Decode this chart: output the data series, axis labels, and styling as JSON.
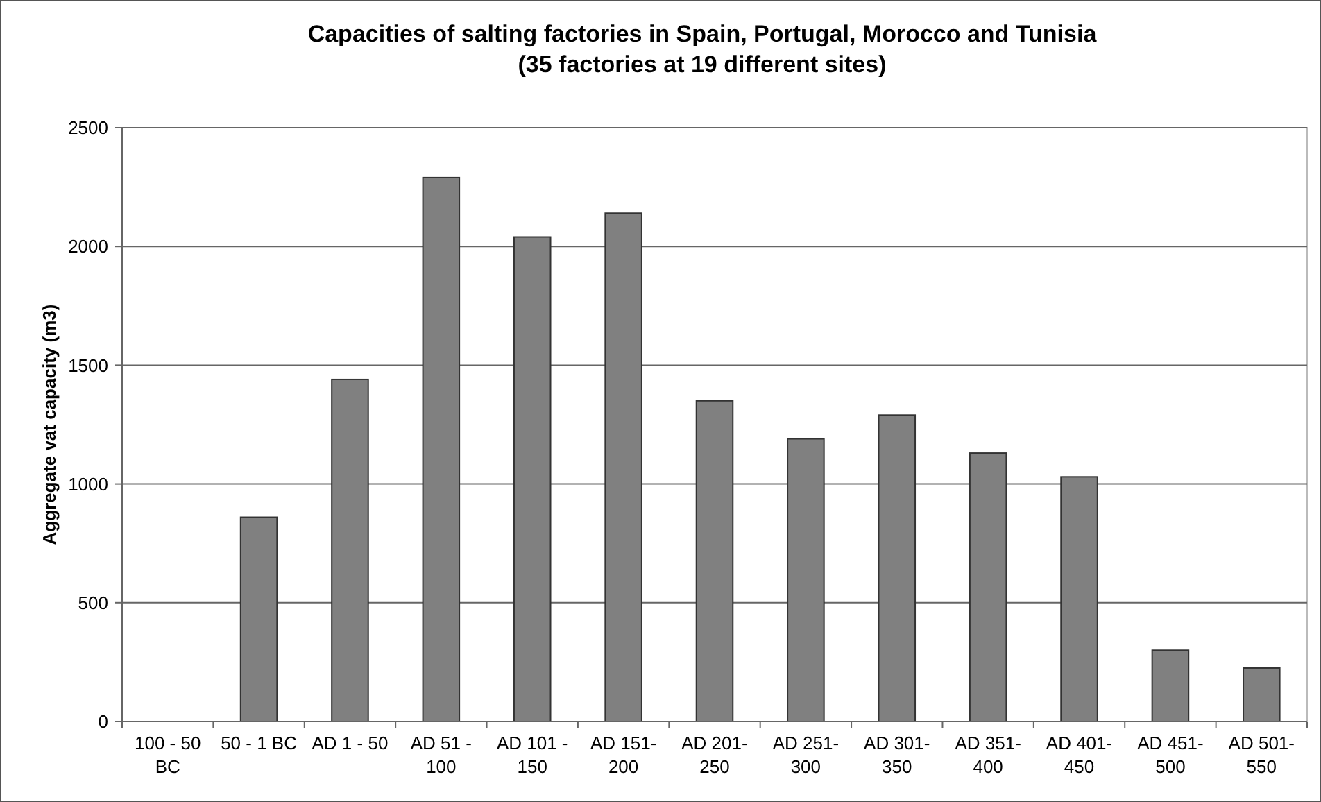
{
  "chart_data": {
    "type": "bar",
    "title": "Capacities of salting factories in Spain, Portugal, Morocco and Tunisia",
    "subtitle": "(35 factories at 19 different sites)",
    "ylabel": "Aggregate vat capacity (m3)",
    "categories": [
      "100 - 50 BC",
      "50 - 1 BC",
      "AD 1 - 50",
      "AD 51 - 100",
      "AD 101 - 150",
      "AD 151- 200",
      "AD 201- 250",
      "AD 251- 300",
      "AD 301- 350",
      "AD 351- 400",
      "AD 401- 450",
      "AD 451- 500",
      "AD 501- 550"
    ],
    "values": [
      null,
      860,
      1440,
      2290,
      2040,
      2140,
      1350,
      1190,
      1290,
      1130,
      1030,
      300,
      225
    ],
    "color": "#808080",
    "ylim": [
      0,
      2500
    ],
    "yticks": [
      0,
      500,
      1000,
      1500,
      2000,
      2500
    ],
    "grid": "y"
  }
}
